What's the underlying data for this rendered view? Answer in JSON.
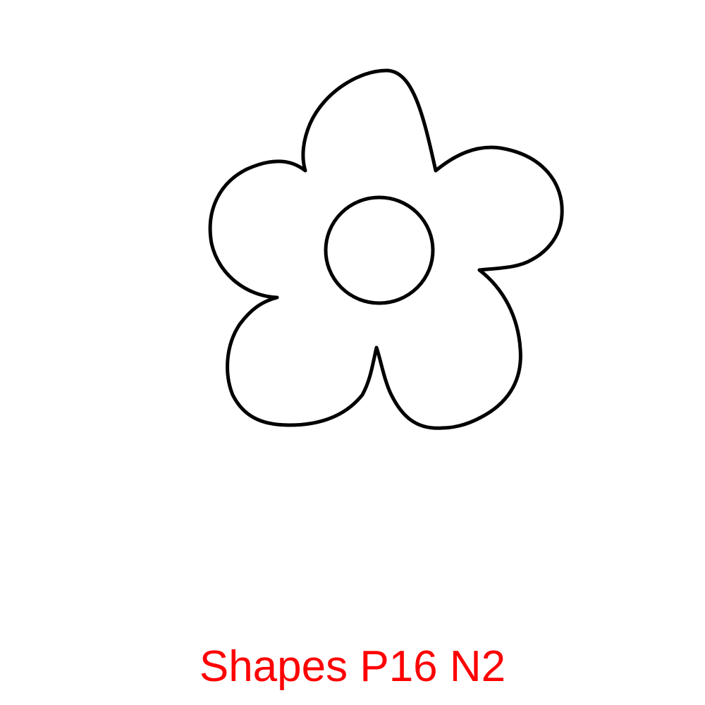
{
  "caption": {
    "text": "Shapes P16 N2",
    "color": "#ff0000"
  },
  "drawing": {
    "icon": "flower-outline-icon",
    "stroke_color": "#000000",
    "fill_color": "#ffffff"
  }
}
